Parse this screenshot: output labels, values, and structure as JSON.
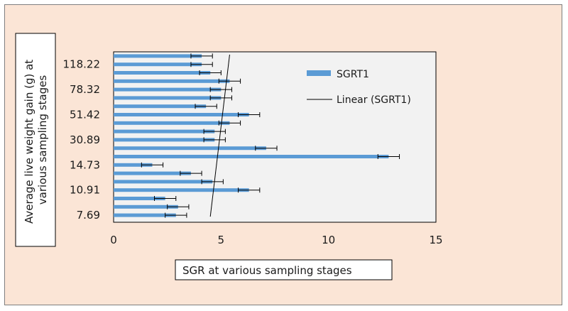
{
  "chart_data": {
    "type": "bar",
    "orientation": "horizontal",
    "title": "",
    "xlabel": "SGR at various sampling stages",
    "ylabel": "Average live weight gain (g) at various sampling stages",
    "xlim": [
      0,
      15
    ],
    "x_ticks": [
      0,
      5,
      10,
      15
    ],
    "y_tick_labels": [
      "7.69",
      "10.91",
      "14.73",
      "30.89",
      "51.42",
      "78.32",
      "118.22"
    ],
    "series": [
      {
        "name": "SGRT1",
        "color": "#5b9bd5",
        "values": [
          2.9,
          3.0,
          2.4,
          6.3,
          4.6,
          3.6,
          1.8,
          12.8,
          7.1,
          4.7,
          4.7,
          5.4,
          6.3,
          4.3,
          5.0,
          5.0,
          5.4,
          4.5,
          4.1,
          4.1
        ],
        "errors": [
          0.5,
          0.5,
          0.5,
          0.5,
          0.5,
          0.5,
          0.5,
          0.5,
          0.5,
          0.5,
          0.5,
          0.5,
          0.5,
          0.5,
          0.5,
          0.5,
          0.5,
          0.5,
          0.5,
          0.5
        ]
      }
    ],
    "trendline": {
      "name": "Linear (SGRT1)",
      "color": "#000000",
      "from": 4.5,
      "to": 5.4
    },
    "legend_position": "right",
    "grid": false
  }
}
